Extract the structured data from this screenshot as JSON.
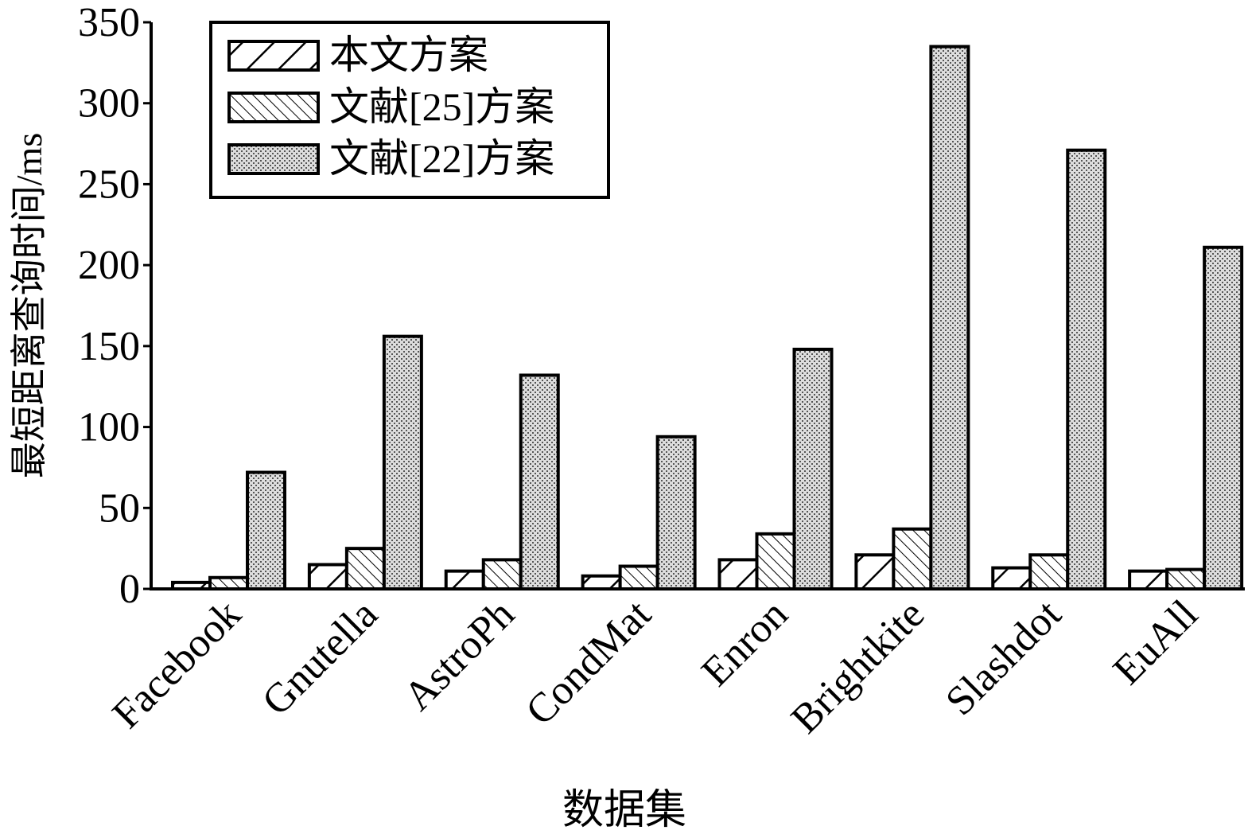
{
  "chart_data": {
    "type": "bar",
    "x_label": "数据集",
    "y_label": "最短距离查询时间/ms",
    "categories": [
      "Facebook",
      "Gnutella",
      "AstroPh",
      "CondMat",
      "Enron",
      "Brightkite",
      "Slashdot",
      "EuAll"
    ],
    "series": [
      {
        "name": "本文方案",
        "color": "#000000",
        "values": [
          4,
          15,
          11,
          8,
          18,
          21,
          13,
          11
        ]
      },
      {
        "name": "文献[25]方案",
        "color": "#000000",
        "values": [
          7,
          25,
          18,
          14,
          34,
          37,
          21,
          12
        ]
      },
      {
        "name": "文献[22]方案",
        "color": "#000000",
        "values": [
          72,
          156,
          132,
          94,
          148,
          335,
          271,
          211
        ]
      }
    ],
    "ylim": [
      0,
      350
    ],
    "yticks": [
      0,
      50,
      100,
      150,
      200,
      250,
      300,
      350
    ],
    "legend": "upper-left"
  }
}
